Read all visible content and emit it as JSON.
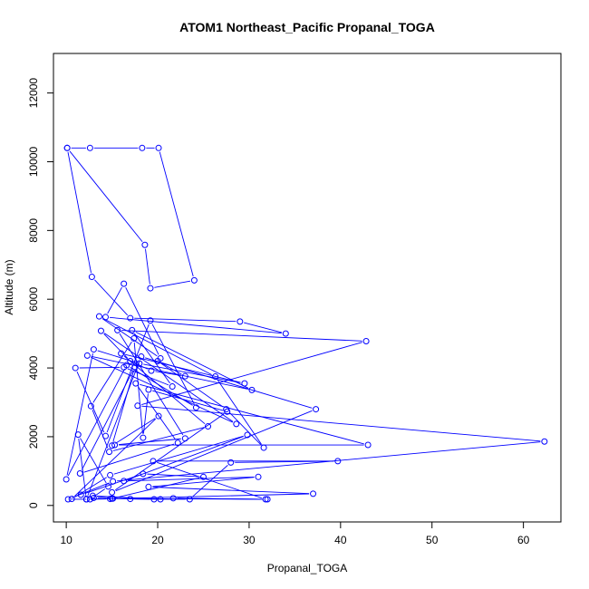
{
  "chart_data": {
    "type": "line",
    "title": "ATOM1 Northeast_Pacific Propanal_TOGA",
    "xlabel": "Propanal_TOGA",
    "ylabel": "Altitude (m)",
    "xlim": [
      8.6,
      64.1
    ],
    "ylim": [
      -480,
      13150
    ],
    "xticks": [
      10,
      20,
      30,
      40,
      50,
      60
    ],
    "yticks": [
      0,
      2000,
      4000,
      6000,
      8000,
      10000,
      12000
    ],
    "xtick_labels": [
      "10",
      "20",
      "30",
      "40",
      "50",
      "60"
    ],
    "ytick_labels": [
      "0",
      "2000",
      "4000",
      "6000",
      "8000",
      "10000",
      "12000"
    ],
    "grid": false,
    "marker": "open-circle",
    "color": "#0000ff",
    "x": [
      10.1,
      12.6,
      18.3,
      20.1,
      24.0,
      19.2,
      18.6,
      10.1,
      12.8,
      17.0,
      29.0,
      34.0,
      14.3,
      16.3,
      20.3,
      13.6,
      26.3,
      31.6,
      27.5,
      20.0,
      23.0,
      19.3,
      17.0,
      13.8,
      28.6,
      12.3,
      30.3,
      17.2,
      21.6,
      16.3,
      11.0,
      14.3,
      19.2,
      24.2,
      16.6,
      10.0,
      13.0,
      18.0,
      29.5,
      16.0,
      25.5,
      14.7,
      12.7,
      17.4,
      18.4,
      19.0,
      27.6,
      15.0,
      37.3,
      18.2,
      12.2,
      11.3,
      14.6,
      12.6,
      10.2,
      15.1,
      62.3,
      17.8,
      42.8,
      15.6,
      23.0,
      15.3,
      43.0,
      17.6,
      22.2,
      11.5,
      17.5,
      15.0,
      20.1,
      10.6,
      14.8,
      29.8,
      16.3,
      31.0,
      19.0,
      37.0,
      12.2,
      14.8,
      13.0,
      11.6,
      18.4,
      25.0,
      15.0,
      19.6,
      23.5,
      28.0,
      39.7,
      19.5,
      31.8,
      21.7,
      32.0,
      15.1,
      12.9,
      20.3,
      17.0
    ],
    "y": [
      10400,
      10400,
      10400,
      10400,
      6550,
      6320,
      7580,
      10400,
      6650,
      5450,
      5350,
      5000,
      5480,
      6450,
      4280,
      5500,
      3750,
      1680,
      2800,
      4200,
      3760,
      3920,
      4200,
      5080,
      2370,
      4360,
      3360,
      5100,
      3460,
      4020,
      4000,
      2020,
      5380,
      2850,
      4080,
      760,
      4540,
      4130,
      3550,
      4420,
      2300,
      1560,
      2890,
      4860,
      1970,
      3370,
      2730,
      380,
      2800,
      4330,
      180,
      2060,
      550,
      180,
      180,
      700,
      1860,
      2900,
      4780,
      5100,
      1950,
      1760,
      1760,
      3550,
      1820,
      930,
      4030,
      1740,
      2600,
      190,
      880,
      2050,
      710,
      830,
      540,
      340,
      180,
      190,
      220,
      310,
      920,
      830,
      200,
      180,
      180,
      1250,
      1290,
      1290,
      180,
      210,
      180,
      200,
      280,
      180,
      190
    ]
  }
}
